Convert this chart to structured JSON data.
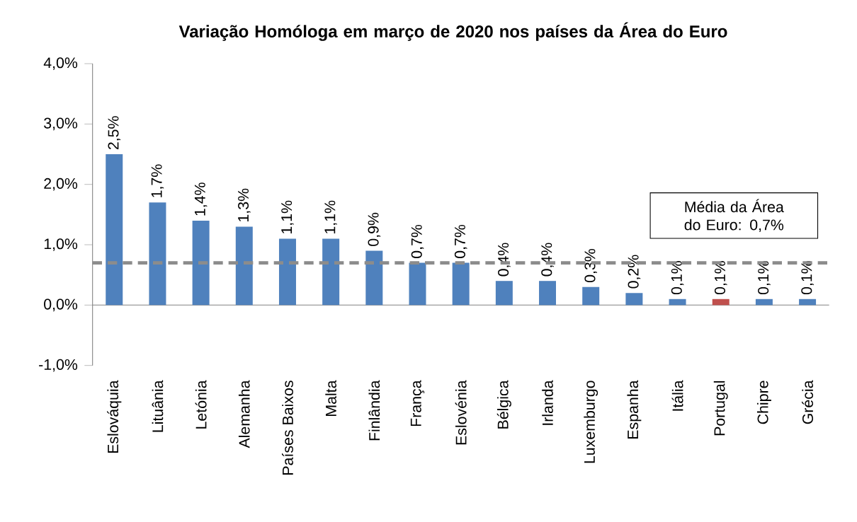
{
  "chart_data": {
    "type": "bar",
    "title": "Variação Homóloga em março de 2020 nos países da Área do Euro",
    "categories": [
      "Eslováquia",
      "Lituânia",
      "Letónia",
      "Alemanha",
      "Países Baixos",
      "Malta",
      "Finlândia",
      "França",
      "Eslovénia",
      "Bélgica",
      "Irlanda",
      "Luxemburgo",
      "Espanha",
      "Itália",
      "Portugal",
      "Chipre",
      "Grécia"
    ],
    "values": [
      2.5,
      1.7,
      1.4,
      1.3,
      1.1,
      1.1,
      0.9,
      0.7,
      0.7,
      0.4,
      0.4,
      0.3,
      0.2,
      0.1,
      0.1,
      0.1,
      0.1
    ],
    "value_labels": [
      "2,5%",
      "1,7%",
      "1,4%",
      "1,3%",
      "1,1%",
      "1,1%",
      "0,9%",
      "0,7%",
      "0,7%",
      "0,4%",
      "0,4%",
      "0,3%",
      "0,2%",
      "0,1%",
      "0,1%",
      "0,1%",
      "0,1%"
    ],
    "colors": [
      "#4f81bd",
      "#4f81bd",
      "#4f81bd",
      "#4f81bd",
      "#4f81bd",
      "#4f81bd",
      "#4f81bd",
      "#4f81bd",
      "#4f81bd",
      "#4f81bd",
      "#4f81bd",
      "#4f81bd",
      "#4f81bd",
      "#4f81bd",
      "#c0504d",
      "#4f81bd",
      "#4f81bd"
    ],
    "ylim": [
      -1.0,
      4.0
    ],
    "yticks": [
      {
        "value": -1.0,
        "label": "-1,0%"
      },
      {
        "value": 0.0,
        "label": "0,0%"
      },
      {
        "value": 1.0,
        "label": "1,0%"
      },
      {
        "value": 2.0,
        "label": "2,0%"
      },
      {
        "value": 3.0,
        "label": "3,0%"
      },
      {
        "value": 4.0,
        "label": "4,0%"
      }
    ],
    "ref_lines": [
      {
        "axis": "y",
        "value": 0.7,
        "label": "Média da Área do Euro: 0,7%",
        "color": "#8c8c8c",
        "line_style": "dashed"
      }
    ]
  }
}
